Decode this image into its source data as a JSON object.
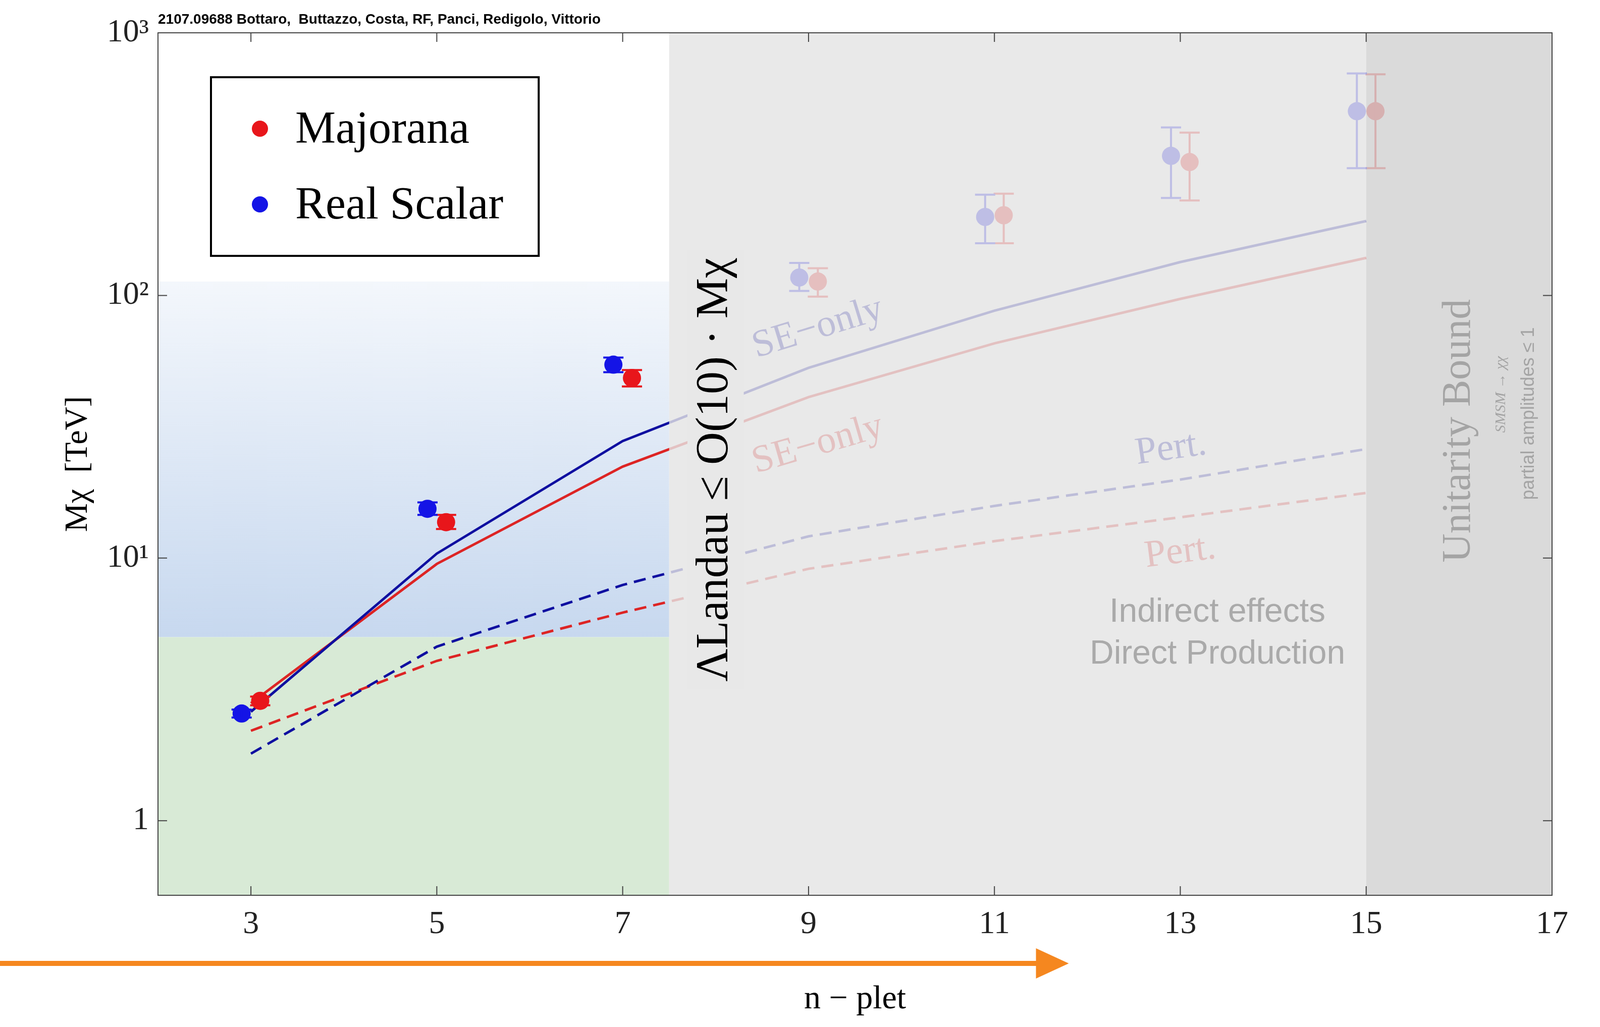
{
  "chart_data": {
    "type": "scatter",
    "title": "2107.09688 Bottaro,  Buttazzo, Costa, RF, Panci, Redigolo, Vittorio",
    "x_label": "n − plet",
    "y_label": "Mχ  [TeV]",
    "xlim": [
      2,
      17
    ],
    "xticks": [
      3,
      5,
      7,
      9,
      11,
      13,
      15,
      17
    ],
    "ylim": [
      0.52,
      1000
    ],
    "yticks": [
      1,
      {
        "value": 10,
        "label": "10¹"
      },
      {
        "value": 100,
        "label": "10²"
      },
      {
        "value": 1000,
        "label": "10³"
      }
    ],
    "log": "y",
    "grid": false,
    "legend": "upper left",
    "series": [
      {
        "name": "Majorana",
        "type": "scatter",
        "marker": "circle",
        "color": "#e8161b",
        "x": [
          3.1,
          5.1,
          7.1,
          9.1,
          11.1,
          13.1,
          15.1
        ],
        "values": [
          2.86,
          13.7,
          48.5,
          113,
          202,
          322,
          503
        ],
        "error_bars": [
          [
            2.75,
            2.97
          ],
          [
            12.9,
            14.6
          ],
          [
            45,
            52
          ],
          [
            99,
            127
          ],
          [
            158,
            244
          ],
          [
            230,
            417
          ],
          [
            305,
            695
          ]
        ]
      },
      {
        "name": "Real Scalar",
        "type": "scatter",
        "marker": "circle",
        "color": "#1414e6",
        "x": [
          2.9,
          4.9,
          6.9,
          8.9,
          10.9,
          12.9,
          14.9
        ],
        "values": [
          2.56,
          15.4,
          54.5,
          117,
          199,
          340,
          503
        ],
        "error_bars": [
          [
            2.47,
            2.65
          ],
          [
            14.6,
            16.3
          ],
          [
            51,
            58
          ],
          [
            104,
            133
          ],
          [
            158,
            242
          ],
          [
            235,
            436
          ],
          [
            305,
            700
          ]
        ]
      },
      {
        "name": "SE−only",
        "type": "line",
        "line_style": "solid",
        "color": "#0f0fa0",
        "x": [
          3,
          5,
          7,
          9,
          11,
          13,
          15
        ],
        "values": [
          2.6,
          10.4,
          27.9,
          53,
          87.5,
          134,
          192
        ]
      },
      {
        "name": "SE−only",
        "type": "line",
        "line_style": "solid",
        "color": "#dd2424",
        "x": [
          3,
          5,
          7,
          9,
          11,
          13,
          15
        ],
        "values": [
          2.8,
          9.5,
          22.3,
          41,
          65.7,
          97,
          139
        ]
      },
      {
        "name": "Pert.",
        "type": "line",
        "line_style": "dashed",
        "color": "#0f0fa0",
        "x": [
          3,
          5,
          7,
          9,
          11,
          13,
          15
        ],
        "values": [
          1.8,
          4.6,
          7.9,
          12.1,
          15.8,
          19.9,
          26
        ]
      },
      {
        "name": "Pert.",
        "type": "line",
        "line_style": "dashed",
        "color": "#dd2424",
        "x": [
          3,
          5,
          7,
          9,
          11,
          13,
          15
        ],
        "values": [
          2.2,
          4.06,
          6.2,
          9.1,
          11.6,
          14.3,
          17.7
        ]
      }
    ],
    "regions": [
      {
        "x": [
          2,
          7.5
        ],
        "y": [
          5,
          113
        ],
        "color": "#c4d6ee"
      },
      {
        "x": [
          2,
          7.5
        ],
        "y": [
          0.52,
          5
        ],
        "color": "#d8ead6"
      }
    ],
    "excluded_regions": [
      {
        "x": [
          7.5,
          15
        ],
        "y": [
          0.52,
          1000
        ],
        "color": "#e4e4e4"
      },
      {
        "x": [
          15,
          17
        ],
        "y": [
          0.52,
          1000
        ],
        "color": "#d2d2d2"
      }
    ],
    "annotations": [
      "ΛLandau ≤ O(10) · Mχ",
      "Unitarity Bound",
      "SMSM → χχ",
      "partial amplitudes ≤ 1",
      "Indirect effects",
      "Direct Production"
    ]
  }
}
